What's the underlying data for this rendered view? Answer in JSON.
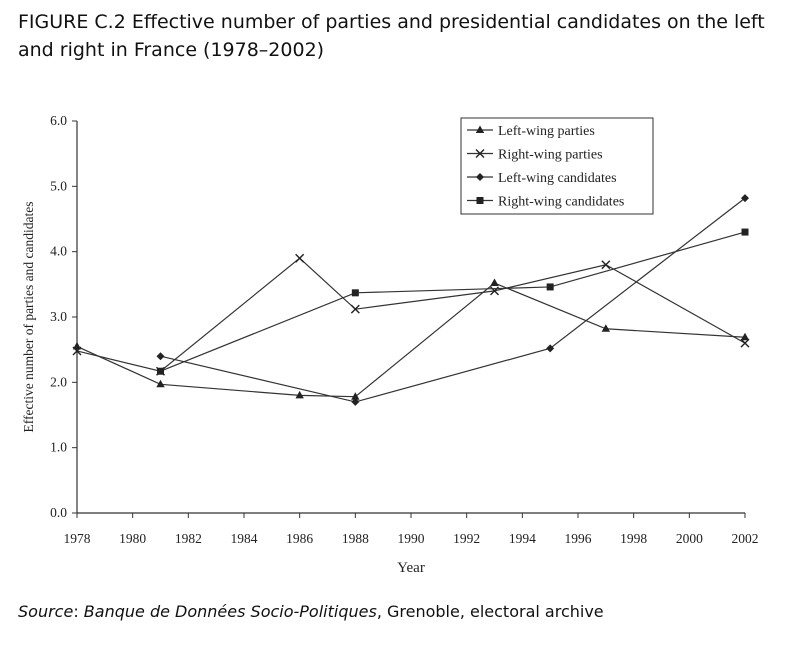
{
  "figure_title": "FIGURE C.2 Effective number of parties and presidential candidates on the left and right in France (1978–2002)",
  "source": {
    "prefix": "Source",
    "colon": ": ",
    "name": "Banque de Données Socio-Politiques",
    "rest": ", Grenoble, electoral archive"
  },
  "chart_data": {
    "type": "line",
    "title": "",
    "xlabel": "Year",
    "ylabel": "Effective number of parties and candidates",
    "xlim": [
      1978,
      2002
    ],
    "ylim": [
      0,
      6
    ],
    "x_ticks": [
      "1978",
      "1980",
      "1982",
      "1984",
      "1986",
      "1988",
      "1990",
      "1992",
      "1994",
      "1996",
      "1998",
      "2000",
      "2002"
    ],
    "y_ticks": [
      "0.0",
      "1.0",
      "2.0",
      "3.0",
      "4.0",
      "5.0",
      "6.0"
    ],
    "grid": false,
    "legend_position": "top-right",
    "series": [
      {
        "name": "Left-wing parties",
        "marker": "triangle",
        "points": [
          [
            1978,
            2.55
          ],
          [
            1981,
            1.97
          ],
          [
            1986,
            1.8
          ],
          [
            1988,
            1.78
          ],
          [
            1993,
            3.52
          ],
          [
            1997,
            2.82
          ],
          [
            2002,
            2.69
          ]
        ]
      },
      {
        "name": "Right-wing parties",
        "marker": "x",
        "points": [
          [
            1978,
            2.48
          ],
          [
            1981,
            2.17
          ],
          [
            1986,
            3.9
          ],
          [
            1988,
            3.12
          ],
          [
            1993,
            3.4
          ],
          [
            1997,
            3.8
          ],
          [
            2002,
            2.6
          ]
        ]
      },
      {
        "name": "Left-wing candidates",
        "marker": "diamond",
        "points": [
          [
            1981,
            2.4
          ],
          [
            1988,
            1.7
          ],
          [
            1995,
            2.52
          ],
          [
            2002,
            4.82
          ]
        ]
      },
      {
        "name": "Right-wing candidates",
        "marker": "square",
        "points": [
          [
            1981,
            2.17
          ],
          [
            1988,
            3.37
          ],
          [
            1995,
            3.46
          ],
          [
            2002,
            4.3
          ]
        ]
      }
    ]
  }
}
